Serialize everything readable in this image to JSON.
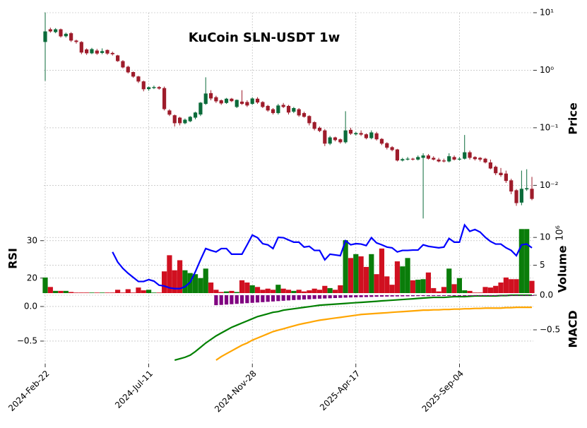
{
  "chart_data": {
    "type": "candlestick",
    "title": "KuCoin SLN-USDT 1w",
    "price_label": "Price",
    "log_scale": true,
    "grid": true,
    "up_color": "#0b6b3a",
    "down_color": "#9e1c2b",
    "xticks": [
      {
        "value": 0,
        "label": "2024-Feb-22"
      },
      {
        "value": 20,
        "label": "2024-Jul-11"
      },
      {
        "value": 40,
        "label": "2024-Nov-28"
      },
      {
        "value": 60,
        "label": "2025-Apr-17"
      },
      {
        "value": 80,
        "label": "2025-Sep-04"
      }
    ],
    "ylim": [
      0.0026,
      10
    ],
    "yticks": [
      {
        "value": 0.01,
        "label": "10⁻²"
      },
      {
        "value": 0.1,
        "label": "10⁻¹"
      },
      {
        "value": 1,
        "label": "10⁰"
      },
      {
        "value": 10,
        "label": "10¹"
      }
    ],
    "candles": {
      "open": [
        3.1,
        5.15,
        4.6,
        5.15,
        3.9,
        4.4,
        3.28,
        3.1,
        2.3,
        1.97,
        2.2,
        2.0,
        2.25,
        2.0,
        1.81,
        1.44,
        1.15,
        0.93,
        0.78,
        0.64,
        0.47,
        0.49,
        0.51,
        0.49,
        0.2,
        0.165,
        0.15,
        0.12,
        0.13,
        0.15,
        0.17,
        0.26,
        0.4,
        0.34,
        0.3,
        0.27,
        0.32,
        0.23,
        0.285,
        0.28,
        0.26,
        0.32,
        0.28,
        0.24,
        0.21,
        0.18,
        0.25,
        0.24,
        0.19,
        0.21,
        0.18,
        0.16,
        0.125,
        0.1,
        0.09,
        0.053,
        0.068,
        0.063,
        0.056,
        0.092,
        0.077,
        0.081,
        0.077,
        0.066,
        0.08,
        0.064,
        0.054,
        0.046,
        0.042,
        0.027,
        0.028,
        0.029,
        0.028,
        0.03,
        0.033,
        0.03,
        0.028,
        0.027,
        0.026,
        0.031,
        0.028,
        0.029,
        0.0375,
        0.031,
        0.03,
        0.029,
        0.025,
        0.021,
        0.0165,
        0.016,
        0.0122,
        0.0082,
        0.005,
        0.0085,
        0.0087
      ],
      "high": [
        10.1,
        5.5,
        5.4,
        5.3,
        4.5,
        4.6,
        3.4,
        3.2,
        2.4,
        2.45,
        2.35,
        2.4,
        2.3,
        2.1,
        1.85,
        1.5,
        1.2,
        0.95,
        0.8,
        0.66,
        0.52,
        0.54,
        0.53,
        0.52,
        0.21,
        0.17,
        0.155,
        0.145,
        0.16,
        0.19,
        0.28,
        0.754,
        0.45,
        0.36,
        0.31,
        0.33,
        0.33,
        0.31,
        0.45,
        0.3,
        0.34,
        0.34,
        0.29,
        0.25,
        0.22,
        0.26,
        0.27,
        0.25,
        0.23,
        0.22,
        0.19,
        0.165,
        0.13,
        0.105,
        0.095,
        0.072,
        0.07,
        0.065,
        0.194,
        0.1,
        0.085,
        0.09,
        0.08,
        0.09,
        0.085,
        0.066,
        0.056,
        0.048,
        0.043,
        0.03,
        0.031,
        0.03,
        0.033,
        0.036,
        0.035,
        0.032,
        0.03,
        0.029,
        0.036,
        0.033,
        0.031,
        0.075,
        0.04,
        0.032,
        0.031,
        0.03,
        0.028,
        0.022,
        0.02,
        0.018,
        0.013,
        0.0086,
        0.018,
        0.019,
        0.014
      ],
      "low": [
        0.654,
        4.5,
        4.4,
        3.7,
        3.7,
        3.1,
        2.9,
        1.9,
        1.85,
        1.9,
        1.85,
        1.9,
        1.85,
        1.8,
        1.4,
        1.08,
        0.88,
        0.74,
        0.6,
        0.43,
        0.44,
        0.47,
        0.46,
        0.2,
        0.16,
        0.105,
        0.11,
        0.115,
        0.125,
        0.14,
        0.16,
        0.25,
        0.3,
        0.27,
        0.25,
        0.26,
        0.28,
        0.22,
        0.25,
        0.23,
        0.25,
        0.26,
        0.22,
        0.19,
        0.17,
        0.17,
        0.22,
        0.17,
        0.18,
        0.155,
        0.15,
        0.11,
        0.09,
        0.084,
        0.048,
        0.05,
        0.058,
        0.053,
        0.053,
        0.075,
        0.073,
        0.072,
        0.063,
        0.063,
        0.06,
        0.05,
        0.042,
        0.039,
        0.026,
        0.026,
        0.027,
        0.027,
        0.027,
        0.00265,
        0.028,
        0.027,
        0.025,
        0.025,
        0.025,
        0.027,
        0.027,
        0.028,
        0.028,
        0.027,
        0.026,
        0.024,
        0.019,
        0.015,
        0.014,
        0.011,
        0.007,
        0.0044,
        0.0045,
        0.008,
        0.0055
      ],
      "close": [
        4.73,
        4.73,
        5.15,
        3.88,
        4.3,
        3.28,
        3.1,
        2.03,
        1.97,
        2.33,
        1.95,
        2.15,
        1.95,
        1.9,
        1.44,
        1.12,
        0.919,
        0.776,
        0.637,
        0.467,
        0.507,
        0.51,
        0.48,
        0.211,
        0.169,
        0.12,
        0.12,
        0.138,
        0.155,
        0.184,
        0.273,
        0.394,
        0.323,
        0.288,
        0.265,
        0.32,
        0.29,
        0.305,
        0.26,
        0.244,
        0.323,
        0.275,
        0.23,
        0.2,
        0.18,
        0.244,
        0.23,
        0.184,
        0.22,
        0.164,
        0.155,
        0.12,
        0.0959,
        0.088,
        0.053,
        0.068,
        0.061,
        0.056,
        0.09,
        0.079,
        0.081,
        0.076,
        0.066,
        0.083,
        0.063,
        0.053,
        0.045,
        0.041,
        0.027,
        0.0285,
        0.029,
        0.028,
        0.031,
        0.033,
        0.029,
        0.028,
        0.026,
        0.026,
        0.032,
        0.028,
        0.029,
        0.0375,
        0.03,
        0.0285,
        0.028,
        0.025,
        0.0196,
        0.0162,
        0.015,
        0.0119,
        0.0078,
        0.0049,
        0.0087,
        0.0089,
        0.0058
      ]
    },
    "rsi": {
      "label": "RSI",
      "color": "#0000ff",
      "ylim": [
        16,
        34.3
      ],
      "yticks": [
        20,
        30
      ],
      "values": [
        null,
        null,
        null,
        null,
        null,
        null,
        null,
        null,
        null,
        null,
        null,
        null,
        null,
        27.0,
        24.3,
        22.6,
        21.3,
        20.2,
        19.1,
        19.1,
        19.6,
        19.2,
        18.1,
        17.9,
        17.4,
        17.2,
        17.2,
        17.7,
        18.9,
        21.7,
        24.9,
        27.9,
        27.4,
        27.0,
        27.9,
        27.9,
        26.4,
        26.4,
        26.4,
        28.9,
        31.5,
        30.8,
        29.2,
        28.9,
        27.9,
        30.9,
        30.8,
        30.2,
        29.6,
        29.6,
        28.3,
        28.5,
        27.4,
        27.4,
        24.9,
        26.4,
        26.2,
        26.0,
        30.0,
        28.9,
        29.2,
        29.1,
        28.7,
        30.8,
        29.4,
        28.9,
        28.3,
        28.1,
        27.0,
        27.4,
        27.4,
        27.5,
        27.5,
        28.9,
        28.5,
        28.3,
        28.1,
        28.3,
        30.6,
        29.6,
        29.6,
        34.2,
        32.5,
        33.0,
        32.3,
        30.9,
        29.8,
        29.1,
        29.1,
        28.1,
        27.4,
        26.0,
        28.9,
        29.1,
        28.1
      ]
    },
    "volume": {
      "label": "Volume",
      "scale_label": "10⁶",
      "up_color": "#0a7d0a",
      "down_color": "#d01020",
      "ylim": [
        0,
        12.3
      ],
      "yticks": [
        5,
        10
      ],
      "values": [
        2.8,
        1.1,
        0.4,
        0.4,
        0.4,
        0.2,
        0.1,
        0.1,
        0.1,
        0.1,
        0.1,
        0.1,
        0.1,
        0.1,
        0.6,
        0.1,
        0.7,
        0.1,
        1.0,
        0.5,
        0.6,
        0.1,
        0.1,
        3.9,
        6.8,
        4.1,
        5.9,
        4.1,
        3.6,
        3.4,
        2.7,
        4.4,
        1.9,
        0.6,
        0.2,
        0.3,
        0.4,
        0.2,
        2.3,
        1.9,
        1.4,
        1.1,
        0.6,
        0.8,
        0.6,
        1.5,
        0.8,
        0.6,
        0.4,
        0.6,
        0.3,
        0.5,
        0.8,
        0.6,
        1.3,
        0.9,
        0.6,
        1.4,
        9.5,
        6.3,
        7.0,
        6.6,
        4.7,
        7.0,
        3.4,
        8.0,
        3.0,
        1.5,
        5.7,
        4.8,
        6.3,
        2.3,
        2.4,
        2.5,
        3.7,
        0.9,
        0.3,
        1.1,
        4.4,
        1.6,
        2.7,
        0.5,
        0.4,
        0.1,
        0.1,
        1.1,
        1.0,
        1.3,
        1.9,
        2.8,
        2.5,
        2.5,
        11.5,
        11.5,
        2.2
      ]
    },
    "macd": {
      "label": "MACD",
      "ylim": [
        -0.827,
        0.163
      ],
      "yticks": [
        {
          "value": 0,
          "label": "0.0"
        },
        {
          "value": -0.5,
          "label": "−0.5"
        }
      ],
      "y2lim": [
        -0.99,
        0
      ],
      "y2ticks": [
        {
          "value": 0,
          "label": "0.0"
        },
        {
          "value": -0.5,
          "label": "−0.5"
        }
      ],
      "series": [
        {
          "type": "line",
          "axis": "y2",
          "color": "#008000",
          "values": [
            null,
            null,
            null,
            null,
            null,
            null,
            null,
            null,
            null,
            null,
            null,
            null,
            null,
            null,
            null,
            null,
            null,
            null,
            null,
            null,
            null,
            null,
            null,
            null,
            null,
            -0.938,
            -0.918,
            -0.897,
            -0.866,
            -0.814,
            -0.753,
            -0.691,
            -0.639,
            -0.588,
            -0.546,
            -0.505,
            -0.464,
            -0.433,
            -0.402,
            -0.371,
            -0.34,
            -0.309,
            -0.289,
            -0.268,
            -0.247,
            -0.237,
            -0.216,
            -0.206,
            -0.196,
            -0.186,
            -0.175,
            -0.165,
            -0.155,
            -0.144,
            -0.139,
            -0.134,
            -0.129,
            -0.124,
            -0.119,
            -0.113,
            -0.108,
            -0.103,
            -0.098,
            -0.093,
            -0.088,
            -0.082,
            -0.077,
            -0.072,
            -0.067,
            -0.062,
            -0.057,
            -0.052,
            -0.046,
            -0.041,
            -0.036,
            -0.031,
            -0.031,
            -0.031,
            -0.026,
            -0.021,
            -0.021,
            -0.021,
            -0.015,
            -0.01,
            -0.01,
            -0.01,
            -0.01,
            -0.01,
            -0.005,
            -0.005,
            0,
            0,
            0,
            0,
            0
          ]
        },
        {
          "type": "line",
          "axis": "y2",
          "color": "#ffa500",
          "values": [
            null,
            null,
            null,
            null,
            null,
            null,
            null,
            null,
            null,
            null,
            null,
            null,
            null,
            null,
            null,
            null,
            null,
            null,
            null,
            null,
            null,
            null,
            null,
            null,
            null,
            null,
            null,
            null,
            null,
            null,
            null,
            null,
            null,
            -0.938,
            -0.887,
            -0.845,
            -0.804,
            -0.763,
            -0.722,
            -0.691,
            -0.649,
            -0.619,
            -0.588,
            -0.557,
            -0.526,
            -0.505,
            -0.485,
            -0.464,
            -0.443,
            -0.423,
            -0.407,
            -0.392,
            -0.376,
            -0.361,
            -0.351,
            -0.34,
            -0.33,
            -0.32,
            -0.309,
            -0.299,
            -0.289,
            -0.278,
            -0.273,
            -0.268,
            -0.263,
            -0.258,
            -0.253,
            -0.247,
            -0.242,
            -0.237,
            -0.232,
            -0.227,
            -0.222,
            -0.216,
            -0.216,
            -0.211,
            -0.211,
            -0.206,
            -0.206,
            -0.201,
            -0.201,
            -0.196,
            -0.196,
            -0.191,
            -0.191,
            -0.186,
            -0.186,
            -0.186,
            -0.186,
            -0.18,
            -0.18,
            -0.175,
            -0.175,
            -0.175,
            -0.175
          ]
        },
        {
          "type": "bar",
          "axis": "y2",
          "color": "#800080",
          "values": [
            null,
            null,
            null,
            null,
            null,
            null,
            null,
            null,
            null,
            null,
            null,
            null,
            null,
            null,
            null,
            null,
            null,
            null,
            null,
            null,
            null,
            null,
            null,
            null,
            null,
            null,
            null,
            null,
            null,
            null,
            null,
            null,
            null,
            -0.144,
            -0.14,
            -0.135,
            -0.13,
            -0.125,
            -0.12,
            -0.115,
            -0.11,
            -0.105,
            -0.1,
            -0.095,
            -0.09,
            -0.085,
            -0.08,
            -0.075,
            -0.07,
            -0.066,
            -0.062,
            -0.058,
            -0.054,
            -0.05,
            -0.047,
            -0.044,
            -0.041,
            -0.038,
            -0.035,
            -0.032,
            -0.03,
            -0.028,
            -0.026,
            -0.024,
            -0.022,
            -0.02,
            -0.019,
            -0.018,
            -0.017,
            -0.016,
            -0.015,
            -0.014,
            -0.013,
            -0.012,
            -0.012,
            -0.011,
            -0.011,
            -0.01,
            -0.01,
            -0.01,
            -0.01,
            -0.01,
            -0.01,
            -0.01,
            -0.01,
            -0.01,
            -0.01,
            -0.01,
            -0.01,
            -0.01,
            -0.01,
            -0.01,
            -0.01,
            -0.01,
            -0.01
          ]
        }
      ]
    }
  }
}
